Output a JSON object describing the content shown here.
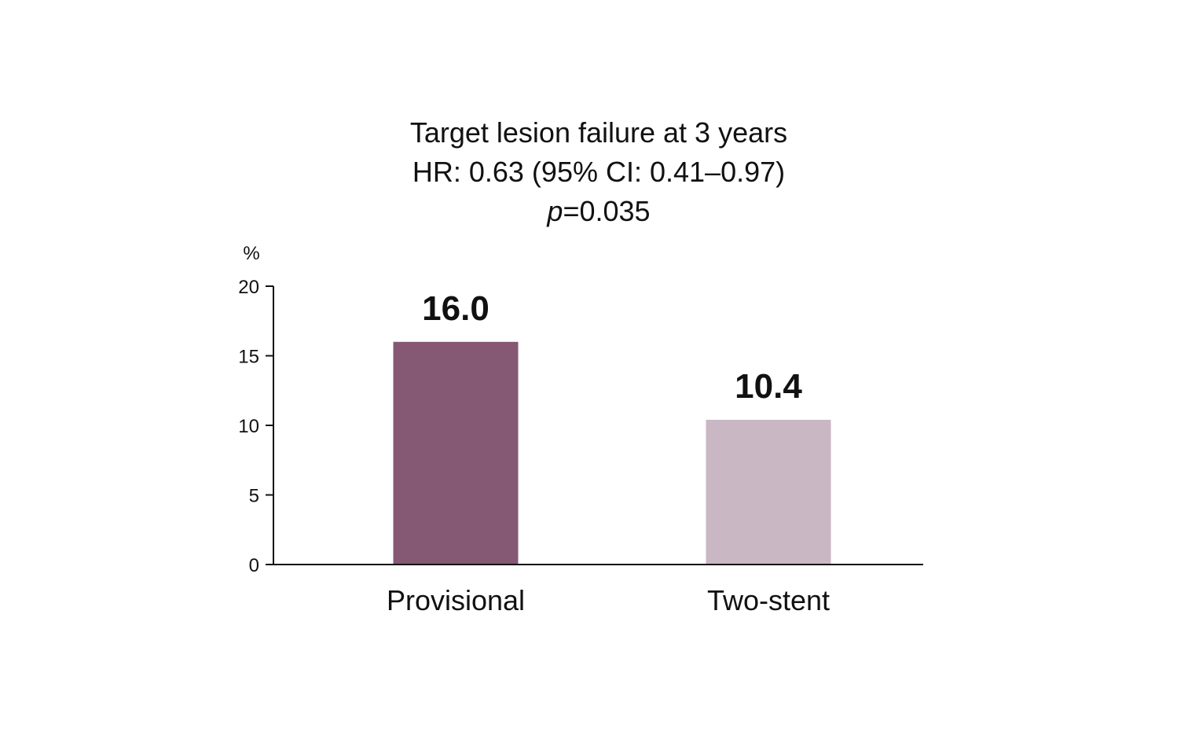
{
  "chart_data": {
    "type": "bar",
    "title": "Target lesion failure at 3 years",
    "subtitle_lines": [
      "HR: 0.63 (95% CI: 0.41–0.97)"
    ],
    "p_label": {
      "italic": "p",
      "rest": "=0.035"
    },
    "ylabel": "%",
    "xlabel": "",
    "ylim": [
      0,
      20
    ],
    "yticks": [
      0,
      5,
      10,
      15,
      20
    ],
    "categories": [
      "Provisional",
      "Two-stent"
    ],
    "values": [
      16.0,
      10.4
    ],
    "data_labels": [
      "16.0",
      "10.4"
    ],
    "bar_colors": [
      "#855874",
      "#c9b7c4"
    ],
    "grid": false,
    "legend": "none"
  }
}
